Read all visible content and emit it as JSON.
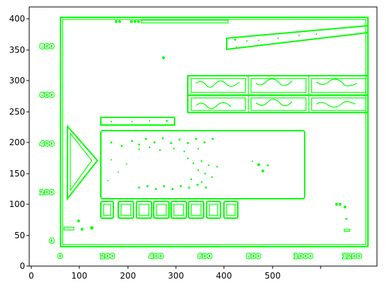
{
  "chart_data": {
    "type": "image",
    "xlim": [
      0,
      555
    ],
    "ylim": [
      0,
      416
    ],
    "x_ticks": [
      "0",
      "100",
      "200",
      "300",
      "400",
      "500"
    ],
    "y_ticks": [
      "0",
      "50",
      "100",
      "150",
      "200",
      "250",
      "300",
      "350",
      "400"
    ],
    "embedded_x_ticks": [
      "0",
      "200",
      "400",
      "600",
      "800",
      "1000",
      "1200"
    ],
    "embedded_y_ticks": [
      "0",
      "200",
      "400",
      "600",
      "800"
    ],
    "colors": {
      "edges": "#00ff00",
      "axes": "#000000",
      "background": "#ffffff"
    }
  }
}
